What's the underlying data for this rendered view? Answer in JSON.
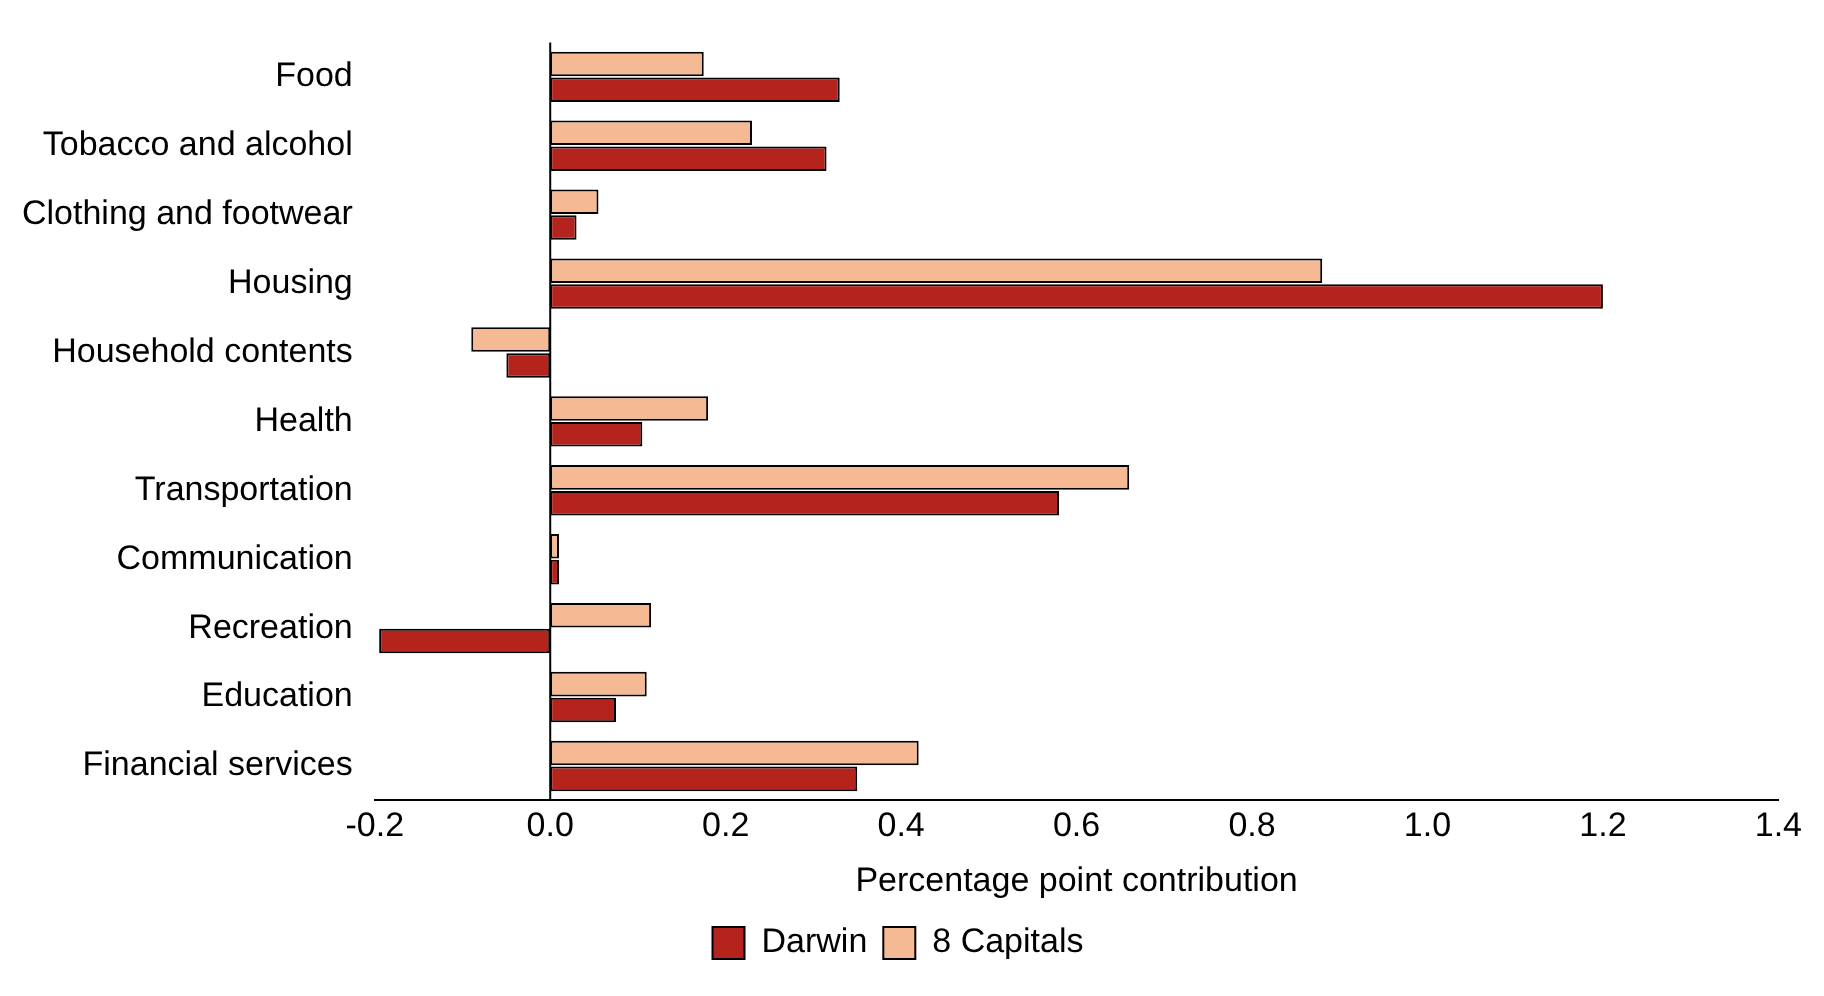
{
  "chart_data": {
    "type": "bar",
    "orientation": "horizontal",
    "xlabel": "Percentage point contribution",
    "categories": [
      "Food",
      "Tobacco and alcohol",
      "Clothing and footwear",
      "Housing",
      "Household contents",
      "Health",
      "Transportation",
      "Communication",
      "Recreation",
      "Education",
      "Financial services"
    ],
    "series": [
      {
        "name": "Darwin",
        "color": "#b5241c",
        "values": [
          0.33,
          0.315,
          0.03,
          1.2,
          -0.05,
          0.105,
          0.58,
          0.01,
          -0.195,
          0.075,
          0.35
        ]
      },
      {
        "name": "8 Capitals",
        "color": "#f5b993",
        "values": [
          0.175,
          0.23,
          0.055,
          0.88,
          -0.09,
          0.18,
          0.66,
          0.01,
          0.115,
          0.11,
          0.42
        ]
      }
    ],
    "xlim": [
      -0.2,
      1.4
    ],
    "xticks": [
      {
        "value": -0.2,
        "label": "-0.2"
      },
      {
        "value": 0,
        "label": "0.0"
      },
      {
        "value": 0.2,
        "label": "0.2"
      },
      {
        "value": 0.4,
        "label": "0.4"
      },
      {
        "value": 0.6,
        "label": "0.6"
      },
      {
        "value": 0.8,
        "label": "0.8"
      },
      {
        "value": 1,
        "label": "1.0"
      },
      {
        "value": 1.2,
        "label": "1.2"
      },
      {
        "value": 1.4,
        "label": "1.4"
      }
    ],
    "ref_lines": [
      {
        "axis": "x",
        "value": 0,
        "color": "#000000"
      }
    ],
    "grid": false,
    "legend": "bottom"
  }
}
